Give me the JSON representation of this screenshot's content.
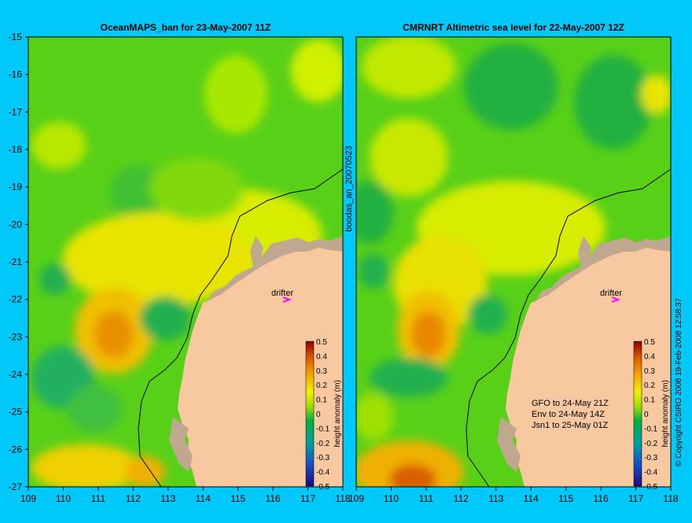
{
  "left_panel": {
    "title": "OceanMAPS_ban for 23-May-2007 11Z",
    "drifter_label": "drifter",
    "side_label": "boodas_an_20070523"
  },
  "right_panel": {
    "title": "CMRNRT Altimetric sea level  for 22-May-2007 12Z",
    "drifter_label": "drifter",
    "notes": [
      "GFO to 24-May 21Z",
      "Env to 24-May 14Z",
      "Jsn1 to 25-May 01Z"
    ],
    "copyright": "© Copyright CSIRO 2008  19-Feb-2008 12:58:37"
  },
  "axes": {
    "lat_ticks": [
      "-15",
      "-16",
      "-17",
      "-18",
      "-19",
      "-20",
      "-21",
      "-22",
      "-23",
      "-24",
      "-25",
      "-26",
      "-27"
    ],
    "lon_ticks": [
      "109",
      "110",
      "111",
      "112",
      "113",
      "114",
      "115",
      "116",
      "117",
      "118"
    ]
  },
  "colorbar": {
    "label": "height anomaly (m)",
    "ticks": [
      "0.5",
      "0.4",
      "0.3",
      "0.2",
      "0.1",
      "0",
      "-0.1",
      "-0.2",
      "-0.3",
      "-0.4",
      "-0.5"
    ]
  },
  "colors": {
    "background": "#00c8f8",
    "land": "#f8c8a0",
    "coast_shallow": "#c0a890",
    "drifter_marker": "#ff00ff"
  }
}
